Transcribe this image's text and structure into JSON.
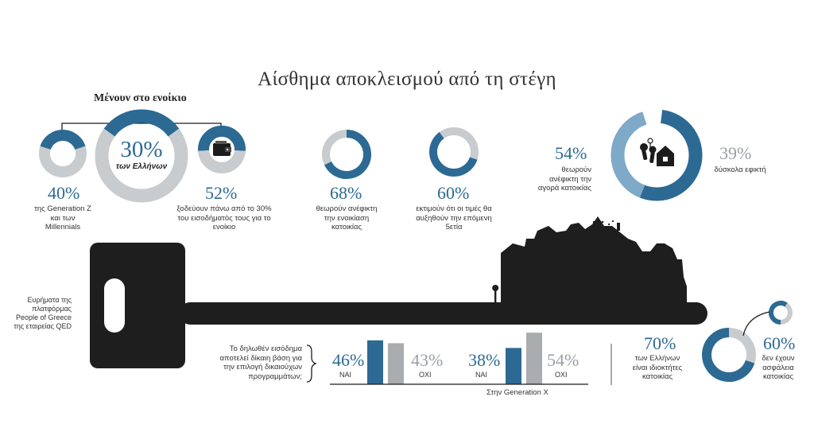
{
  "title": "Αίσθημα αποκλεισμού από τη στέγη",
  "subheading": "Μένουν στο ενοίκιο",
  "colors": {
    "blue": "#2c6a93",
    "gray": "#c9ccce",
    "light_blue": "#7ea9c8",
    "dark": "#1c1c1c"
  },
  "chart_data": [
    {
      "type": "pie",
      "id": "renters-total",
      "values": [
        30,
        70
      ],
      "value_label": "30%",
      "caption": "των Ελλήνων"
    },
    {
      "type": "pie",
      "id": "gen-z",
      "values": [
        40,
        60
      ],
      "value_label": "40%",
      "caption": "της Generation Z και των Millennials",
      "icon": "people-icon"
    },
    {
      "type": "pie",
      "id": "income-share",
      "values": [
        52,
        48
      ],
      "value_label": "52%",
      "caption": "ξοδεύουν πάνω από το 30% του εισοδήματός τους για το ενοίκιο",
      "icon": "wallet-icon"
    },
    {
      "type": "pie",
      "id": "rent-unaffordable",
      "values": [
        68,
        32
      ],
      "value_label": "68%",
      "caption": "θεωρούν ανέφικτη την ενοικίαση κατοικίας"
    },
    {
      "type": "pie",
      "id": "prices-rise",
      "values": [
        60,
        40
      ],
      "value_label": "60%",
      "caption": "εκτιμούν ότι οι τιμές θα αυξηθούν την επόμενη 5ετία"
    },
    {
      "type": "pie",
      "id": "purchase",
      "values": [
        54,
        39
      ],
      "value_labels": [
        "54%",
        "39%"
      ],
      "captions": [
        "θεωρούν ανέφικτη την αγορά κατοικίας",
        "δύσκολα εφικτή"
      ],
      "icon": "keys-house-icon"
    },
    {
      "type": "bar",
      "id": "income-basis-all",
      "categories": [
        "ΝΑΙ",
        "ΟΧΙ"
      ],
      "values": [
        46,
        43
      ],
      "value_labels": [
        "46%",
        "43%"
      ]
    },
    {
      "type": "bar",
      "id": "income-basis-genx",
      "categories": [
        "ΝΑΙ",
        "ΟΧΙ"
      ],
      "values": [
        38,
        54
      ],
      "value_labels": [
        "38%",
        "54%"
      ],
      "caption": "Στην Generation X"
    },
    {
      "type": "pie",
      "id": "owners",
      "values": [
        70,
        30
      ],
      "value_label": "70%",
      "caption": "των Ελλήνων είναι ιδιοκτήτες κατοικίας"
    },
    {
      "type": "pie",
      "id": "insured",
      "values": [
        60,
        40
      ],
      "value_label": "60%",
      "caption": "δεν έχουν ασφάλεια κατοικίας"
    }
  ],
  "texts": {
    "source": "Ευρήματα της πλατφόρμας People of Greece της εταιρείας QED",
    "question": "Το δηλωθέν εισόδημα αποτελεί δίκαιη βάση για την επιλογή δικαιούχων προγραμμάτων;",
    "gen_z_desc": "της Generation Z και των Millennials",
    "income_desc": "ξοδεύουν πάνω από το 30% του εισοδήματός τους για το ενοίκιο",
    "rent_desc": "θεωρούν ανέφικτη την ενοικίαση κατοικίας",
    "prices_desc": "εκτιμούν ότι οι τιμές θα αυξηθούν την επόμενη 5ετία",
    "buy_desc": "θεωρούν ανέφικτη την αγορά κατοικίας",
    "hard_desc": "δύσκολα εφικτή",
    "owners_desc": "των Ελλήνων είναι ιδιοκτήτες κατοικίας",
    "insured_desc": "δεν έχουν ασφάλεια κατοικίας",
    "center_sub": "των Ελλήνων",
    "yes": "ΝΑΙ",
    "no": "ΟΧΙ",
    "genx": "Στην Generation X"
  }
}
